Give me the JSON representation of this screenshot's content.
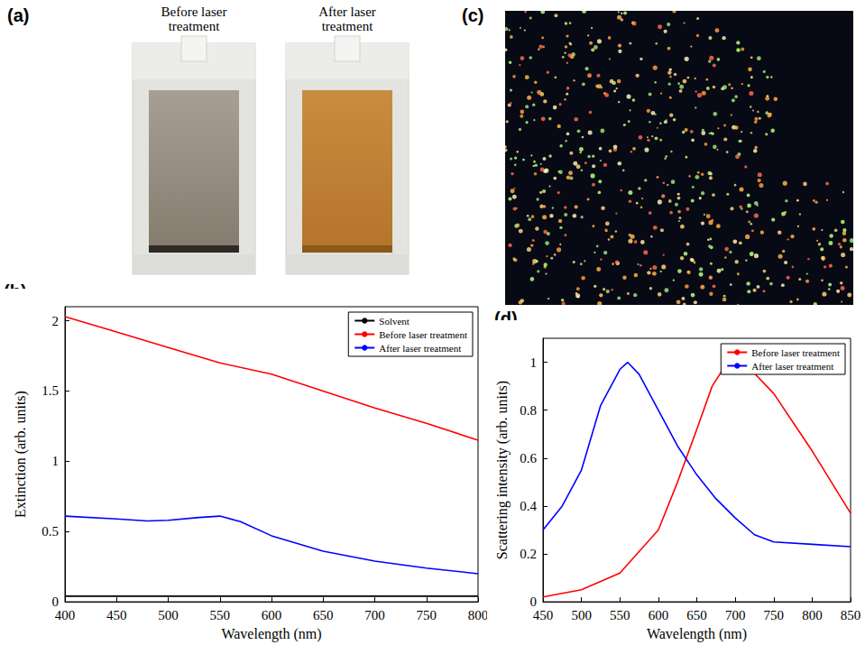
{
  "figure": {
    "panels": [
      {
        "letter": "(a)",
        "type": "photo",
        "captions": [
          "Before laser treatment",
          "After laser treatment"
        ]
      },
      {
        "letter": "(c)",
        "type": "photo"
      }
    ]
  },
  "chart_data": [
    {
      "panel": "(b)",
      "type": "line",
      "x_label": "Wavelength (nm)",
      "y_label": "Extinction (arb. units)",
      "xlim": [
        400,
        800
      ],
      "xticks": [
        400,
        450,
        500,
        550,
        600,
        650,
        700,
        750,
        800
      ],
      "ylim": [
        0,
        2.1
      ],
      "yticks": [
        0,
        0.5,
        1,
        1.5,
        2
      ],
      "grid": false,
      "legend": "upper right",
      "series": [
        {
          "name": "Solvent",
          "color": "#000000",
          "line_style": "solid",
          "x": [
            400,
            500,
            600,
            700,
            800
          ],
          "values": [
            0.04,
            0.04,
            0.04,
            0.04,
            0.04
          ]
        },
        {
          "name": "Before laser treatment",
          "color": "#ff0000",
          "line_style": "solid",
          "x": [
            400,
            450,
            500,
            550,
            600,
            650,
            700,
            750,
            800
          ],
          "values": [
            2.03,
            1.92,
            1.81,
            1.7,
            1.62,
            1.5,
            1.38,
            1.27,
            1.15
          ]
        },
        {
          "name": "After laser treatment",
          "color": "#0000ff",
          "line_style": "solid",
          "x": [
            400,
            450,
            480,
            500,
            530,
            550,
            570,
            600,
            650,
            700,
            750,
            800
          ],
          "values": [
            0.61,
            0.59,
            0.575,
            0.58,
            0.6,
            0.61,
            0.57,
            0.47,
            0.36,
            0.29,
            0.24,
            0.2
          ]
        }
      ]
    },
    {
      "panel": "(d)",
      "type": "line",
      "x_label": "Wavelength (nm)",
      "y_label": "Scattering intensity (arb. units)",
      "xlim": [
        450,
        850
      ],
      "xticks": [
        450,
        500,
        550,
        600,
        650,
        700,
        750,
        800,
        850
      ],
      "ylim": [
        0,
        1.1
      ],
      "yticks": [
        0,
        0.2,
        0.4,
        0.6,
        0.8,
        1
      ],
      "grid": false,
      "legend": "upper right",
      "series": [
        {
          "name": "Before laser treatment",
          "color": "#ff0000",
          "line_style": "solid",
          "x": [
            450,
            500,
            550,
            600,
            625,
            650,
            670,
            690,
            700,
            720,
            750,
            775,
            800,
            825,
            850
          ],
          "values": [
            0.02,
            0.05,
            0.12,
            0.3,
            0.5,
            0.72,
            0.9,
            1.0,
            1.0,
            0.97,
            0.87,
            0.75,
            0.63,
            0.5,
            0.37
          ]
        },
        {
          "name": "After laser treatment",
          "color": "#0000ff",
          "line_style": "solid",
          "x": [
            450,
            475,
            500,
            525,
            550,
            560,
            575,
            600,
            625,
            650,
            675,
            700,
            725,
            750,
            800,
            850
          ],
          "values": [
            0.3,
            0.4,
            0.55,
            0.82,
            0.97,
            1.0,
            0.95,
            0.8,
            0.65,
            0.53,
            0.43,
            0.35,
            0.28,
            0.25,
            0.24,
            0.23
          ]
        }
      ]
    }
  ]
}
